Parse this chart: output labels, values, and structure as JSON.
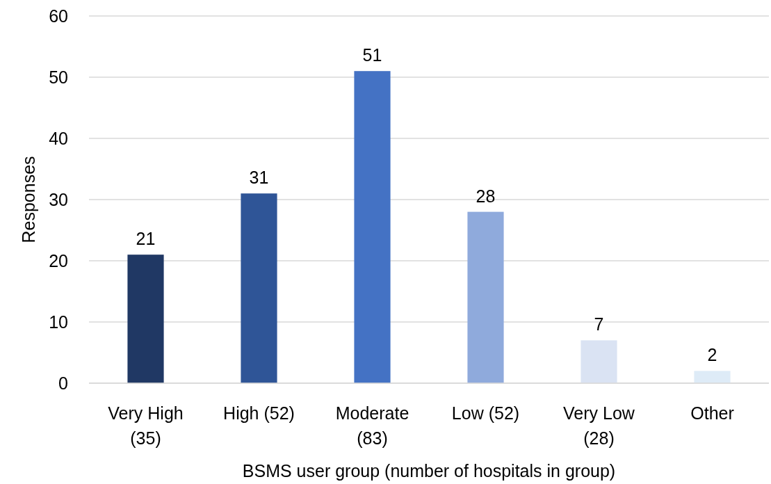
{
  "chart_data": {
    "type": "bar",
    "xlabel": "BSMS user group (number of hospitals in group)",
    "ylabel": "Responses",
    "categories": [
      "Very High (35)",
      "High (52)",
      "Moderate (83)",
      "Low (52)",
      "Very Low (28)",
      "Other"
    ],
    "values": [
      21,
      31,
      51,
      28,
      7,
      2
    ],
    "colors": [
      "#203864",
      "#2f5597",
      "#4472c4",
      "#8faadc",
      "#dae3f3",
      "#deebf7"
    ],
    "ylim": [
      0,
      60
    ],
    "yticks": [
      0,
      10,
      20,
      30,
      40,
      50,
      60
    ],
    "grid": "y",
    "data_labels": true
  }
}
